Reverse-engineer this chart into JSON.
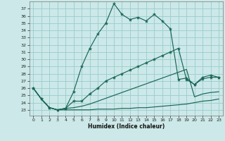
{
  "bg_color": "#cce8e8",
  "grid_color": "#99cccc",
  "line_color": "#1a6655",
  "xlabel": "Humidex (Indice chaleur)",
  "x_ticks": [
    0,
    1,
    2,
    3,
    4,
    5,
    6,
    7,
    8,
    9,
    10,
    11,
    12,
    13,
    14,
    15,
    16,
    17,
    18,
    19,
    20,
    21,
    22,
    23
  ],
  "y_ticks": [
    23,
    24,
    25,
    26,
    27,
    28,
    29,
    30,
    31,
    32,
    33,
    34,
    35,
    36,
    37
  ],
  "ylim": [
    22.2,
    38.0
  ],
  "xlim": [
    -0.5,
    23.5
  ],
  "series_main": [
    26.0,
    24.5,
    23.3,
    23.0,
    23.2,
    25.5,
    29.0,
    31.5,
    33.5,
    35.0,
    37.7,
    36.2,
    35.5,
    35.8,
    35.3,
    36.2,
    35.3,
    34.2,
    27.2,
    27.4,
    26.5,
    27.5,
    27.8,
    27.5
  ],
  "series_mid": [
    26.0,
    24.5,
    23.3,
    23.0,
    23.2,
    24.2,
    24.2,
    25.2,
    26.0,
    27.0,
    27.5,
    28.0,
    28.5,
    29.0,
    29.5,
    30.0,
    30.5,
    31.0,
    31.5,
    27.2,
    26.5,
    27.3,
    27.5,
    27.5
  ],
  "series_flat": [
    26.0,
    24.5,
    23.3,
    23.0,
    23.0,
    23.0,
    23.0,
    23.0,
    23.1,
    23.1,
    23.1,
    23.2,
    23.2,
    23.3,
    23.3,
    23.4,
    23.5,
    23.6,
    23.7,
    23.8,
    24.0,
    24.2,
    24.3,
    24.5
  ],
  "series_gentle": [
    26.0,
    24.5,
    23.3,
    23.0,
    23.2,
    23.3,
    23.5,
    23.8,
    24.2,
    24.6,
    25.0,
    25.4,
    25.8,
    26.2,
    26.6,
    27.0,
    27.4,
    27.8,
    28.2,
    28.6,
    24.8,
    25.2,
    25.4,
    25.5
  ]
}
